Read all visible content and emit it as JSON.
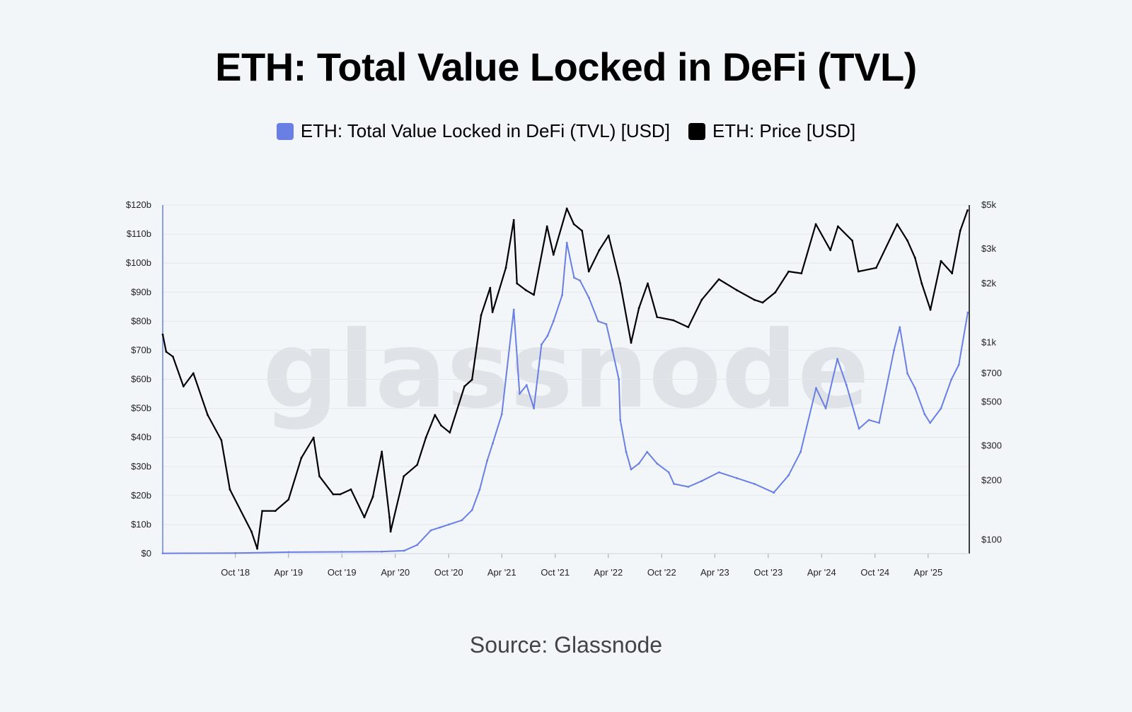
{
  "title": "ETH: Total Value Locked in DeFi (TVL)",
  "legend": [
    {
      "label": "ETH: Total Value Locked in DeFi (TVL) [USD]",
      "color": "#6a7fe3"
    },
    {
      "label": "ETH: Price [USD]",
      "color": "#000000"
    }
  ],
  "source": "Source: Glassnode",
  "watermark": "glassnode",
  "chart_data": {
    "type": "line",
    "title": "ETH: Total Value Locked in DeFi (TVL)",
    "xlabel": "",
    "ylabel": "",
    "x_ticks": [
      "Oct '18",
      "Apr '19",
      "Oct '19",
      "Apr '20",
      "Oct '20",
      "Apr '21",
      "Oct '21",
      "Apr '22",
      "Oct '22",
      "Apr '23",
      "Oct '23",
      "Apr '24",
      "Oct '24",
      "Apr '25"
    ],
    "y_left_ticks": [
      "$0",
      "$10b",
      "$20b",
      "$30b",
      "$40b",
      "$50b",
      "$60b",
      "$70b",
      "$80b",
      "$90b",
      "$100b",
      "$110b",
      "$120b"
    ],
    "y_left_range_billions": [
      0,
      120
    ],
    "y_right_ticks": [
      "$100",
      "$200",
      "$300",
      "$500",
      "$700",
      "$1k",
      "$2k",
      "$3k",
      "$5k"
    ],
    "y_right_scale": "log",
    "y_right_range": [
      85,
      5000
    ],
    "x_range": [
      "2018-01-25",
      "2025-08-20"
    ],
    "grid": true,
    "legend_position": "top-center",
    "series": [
      {
        "name": "ETH: Total Value Locked in DeFi (TVL) [USD]",
        "axis": "left",
        "unit": "billions USD",
        "color": "#6a7fe3",
        "x": [
          "2018-01-25",
          "2018-10-01",
          "2019-04-01",
          "2019-10-01",
          "2020-02-15",
          "2020-05-01",
          "2020-06-15",
          "2020-08-01",
          "2020-09-01",
          "2020-10-01",
          "2020-11-15",
          "2020-12-20",
          "2021-01-15",
          "2021-02-10",
          "2021-03-01",
          "2021-04-01",
          "2021-05-12",
          "2021-06-01",
          "2021-06-25",
          "2021-07-20",
          "2021-08-15",
          "2021-09-05",
          "2021-09-25",
          "2021-10-25",
          "2021-11-10",
          "2021-12-05",
          "2021-12-25",
          "2022-01-25",
          "2022-02-25",
          "2022-03-25",
          "2022-04-15",
          "2022-05-07",
          "2022-05-12",
          "2022-06-01",
          "2022-06-18",
          "2022-07-15",
          "2022-08-12",
          "2022-09-15",
          "2022-10-25",
          "2022-11-12",
          "2022-12-31",
          "2023-02-15",
          "2023-04-15",
          "2023-06-15",
          "2023-08-15",
          "2023-10-20",
          "2023-12-10",
          "2024-01-20",
          "2024-03-13",
          "2024-04-15",
          "2024-05-25",
          "2024-06-25",
          "2024-08-07",
          "2024-09-10",
          "2024-10-15",
          "2024-12-05",
          "2024-12-25",
          "2025-01-20",
          "2025-02-15",
          "2025-03-20",
          "2025-04-08",
          "2025-05-15",
          "2025-06-20",
          "2025-07-15",
          "2025-08-15"
        ],
        "values": [
          0.1,
          0.2,
          0.5,
          0.6,
          0.7,
          1.0,
          3.0,
          8.0,
          9.0,
          10.0,
          11.5,
          15.0,
          22.0,
          32.0,
          38.0,
          48.0,
          84.0,
          55.0,
          58.0,
          50.0,
          72.0,
          75.0,
          80.0,
          89.0,
          107.0,
          95.0,
          94.0,
          88.0,
          80.0,
          79.0,
          70.0,
          60.0,
          46.0,
          35.0,
          29.0,
          31.0,
          35.0,
          31.0,
          28.0,
          24.0,
          23.0,
          25.0,
          28.0,
          26.0,
          24.0,
          21.0,
          27.0,
          35.0,
          57.0,
          50.0,
          67.0,
          58.0,
          43.0,
          46.0,
          45.0,
          70.0,
          78.0,
          62.0,
          57.0,
          48.0,
          45.0,
          50.0,
          60.0,
          65.0,
          83.0
        ]
      },
      {
        "name": "ETH: Price [USD]",
        "axis": "right",
        "unit": "USD",
        "color": "#000000",
        "x": [
          "2018-01-25",
          "2018-02-06",
          "2018-03-01",
          "2018-04-06",
          "2018-05-10",
          "2018-06-28",
          "2018-08-14",
          "2018-09-12",
          "2018-11-25",
          "2018-12-15",
          "2019-01-01",
          "2019-02-15",
          "2019-04-01",
          "2019-05-15",
          "2019-06-26",
          "2019-07-16",
          "2019-09-01",
          "2019-09-25",
          "2019-11-01",
          "2019-12-17",
          "2020-01-15",
          "2020-02-15",
          "2020-03-12",
          "2020-03-16",
          "2020-04-30",
          "2020-06-15",
          "2020-07-15",
          "2020-08-15",
          "2020-09-05",
          "2020-10-05",
          "2020-11-24",
          "2020-12-20",
          "2021-01-20",
          "2021-02-20",
          "2021-02-28",
          "2021-04-15",
          "2021-05-12",
          "2021-05-23",
          "2021-06-22",
          "2021-07-20",
          "2021-09-03",
          "2021-09-25",
          "2021-11-10",
          "2021-12-04",
          "2022-01-01",
          "2022-01-24",
          "2022-03-01",
          "2022-04-02",
          "2022-05-12",
          "2022-06-18",
          "2022-07-15",
          "2022-08-14",
          "2022-09-15",
          "2022-11-10",
          "2022-12-31",
          "2023-02-15",
          "2023-04-15",
          "2023-06-15",
          "2023-08-15",
          "2023-09-12",
          "2023-10-25",
          "2023-12-10",
          "2024-01-23",
          "2024-03-12",
          "2024-05-01",
          "2024-05-27",
          "2024-07-15",
          "2024-08-05",
          "2024-10-05",
          "2024-12-16",
          "2025-01-20",
          "2025-02-15",
          "2025-03-10",
          "2025-04-09",
          "2025-05-15",
          "2025-06-22",
          "2025-07-20",
          "2025-08-14"
        ],
        "values": [
          1100,
          900,
          850,
          600,
          700,
          430,
          320,
          180,
          110,
          90,
          140,
          140,
          160,
          260,
          330,
          210,
          170,
          170,
          180,
          130,
          165,
          280,
          130,
          110,
          210,
          240,
          330,
          430,
          380,
          350,
          600,
          650,
          1380,
          1900,
          1430,
          2400,
          4200,
          2000,
          1850,
          1750,
          3900,
          2800,
          4800,
          4000,
          3700,
          2300,
          2950,
          3500,
          2000,
          1000,
          1500,
          2000,
          1350,
          1300,
          1200,
          1650,
          2100,
          1850,
          1650,
          1600,
          1800,
          2300,
          2250,
          4000,
          2950,
          3900,
          3300,
          2300,
          2400,
          4000,
          3300,
          2700,
          2000,
          1470,
          2600,
          2250,
          3700,
          4700
        ]
      }
    ]
  }
}
